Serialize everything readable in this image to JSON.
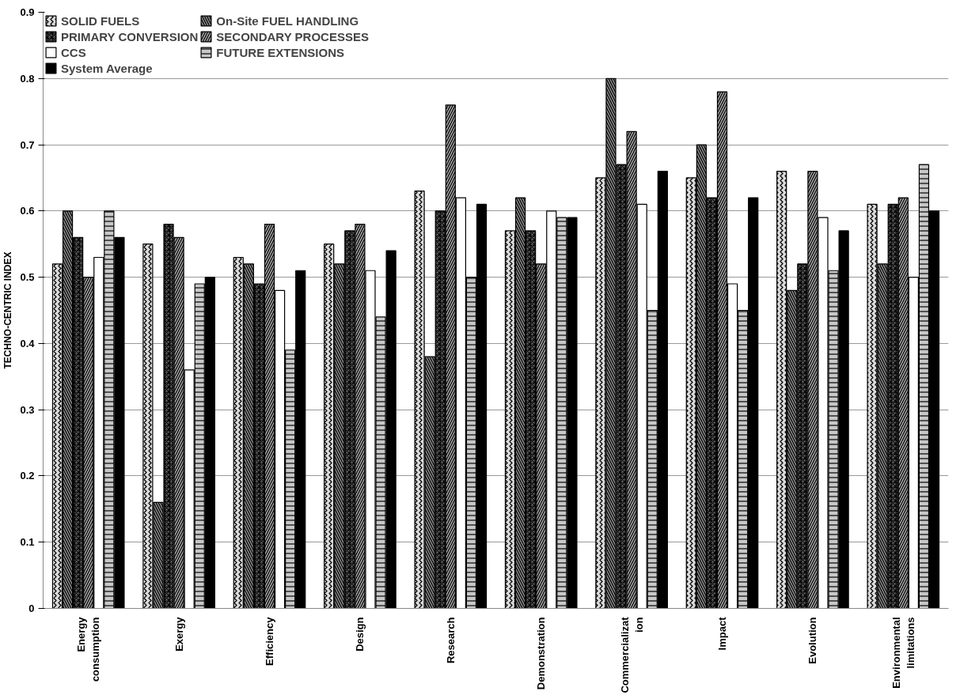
{
  "chart_data": {
    "type": "bar",
    "ylabel": "TECHNO-CENTRIC INDEX",
    "categories": [
      "Energy consumption",
      "Exergy",
      "Efficiency",
      "Design",
      "Research",
      "Demonstration",
      "Commercialization",
      "Impact",
      "Evolution",
      "Environmental limitations"
    ],
    "series": [
      {
        "name": "SOLID FUELS",
        "color": "#d9d9d9",
        "values": [
          0.52,
          0.55,
          0.53,
          0.55,
          0.63,
          0.57,
          0.65,
          0.65,
          0.66,
          0.61
        ]
      },
      {
        "name": "On-Site FUEL HANDLING",
        "color": "#8c8c8c",
        "values": [
          0.6,
          0.16,
          0.52,
          0.52,
          0.38,
          0.62,
          0.8,
          0.7,
          0.48,
          0.52
        ]
      },
      {
        "name": "PRIMARY CONVERSION",
        "color": "#6e6e6e",
        "values": [
          0.56,
          0.58,
          0.49,
          0.57,
          0.6,
          0.57,
          0.67,
          0.62,
          0.52,
          0.61
        ]
      },
      {
        "name": "SECONDARY PROCESSES",
        "color": "#a6a6a6",
        "values": [
          0.5,
          0.56,
          0.58,
          0.58,
          0.76,
          0.52,
          0.72,
          0.78,
          0.66,
          0.62
        ]
      },
      {
        "name": "CCS",
        "color": "#ffffff",
        "values": [
          0.53,
          0.36,
          0.48,
          0.51,
          0.62,
          0.6,
          0.61,
          0.49,
          0.59,
          0.5
        ]
      },
      {
        "name": "FUTURE EXTENSIONS",
        "color": "#c8c8c8",
        "values": [
          0.6,
          0.49,
          0.39,
          0.44,
          0.5,
          0.59,
          0.45,
          0.45,
          0.51,
          0.67
        ]
      },
      {
        "name": "System Average",
        "color": "#000000",
        "values": [
          0.56,
          0.5,
          0.51,
          0.54,
          0.61,
          0.59,
          0.66,
          0.62,
          0.57,
          0.6
        ]
      }
    ],
    "ylim": [
      0,
      0.9
    ],
    "yticks": [
      0,
      0.1,
      0.2,
      0.3,
      0.4,
      0.5,
      0.6,
      0.7,
      0.8,
      0.9
    ],
    "grid": "y",
    "legend": "top left"
  }
}
